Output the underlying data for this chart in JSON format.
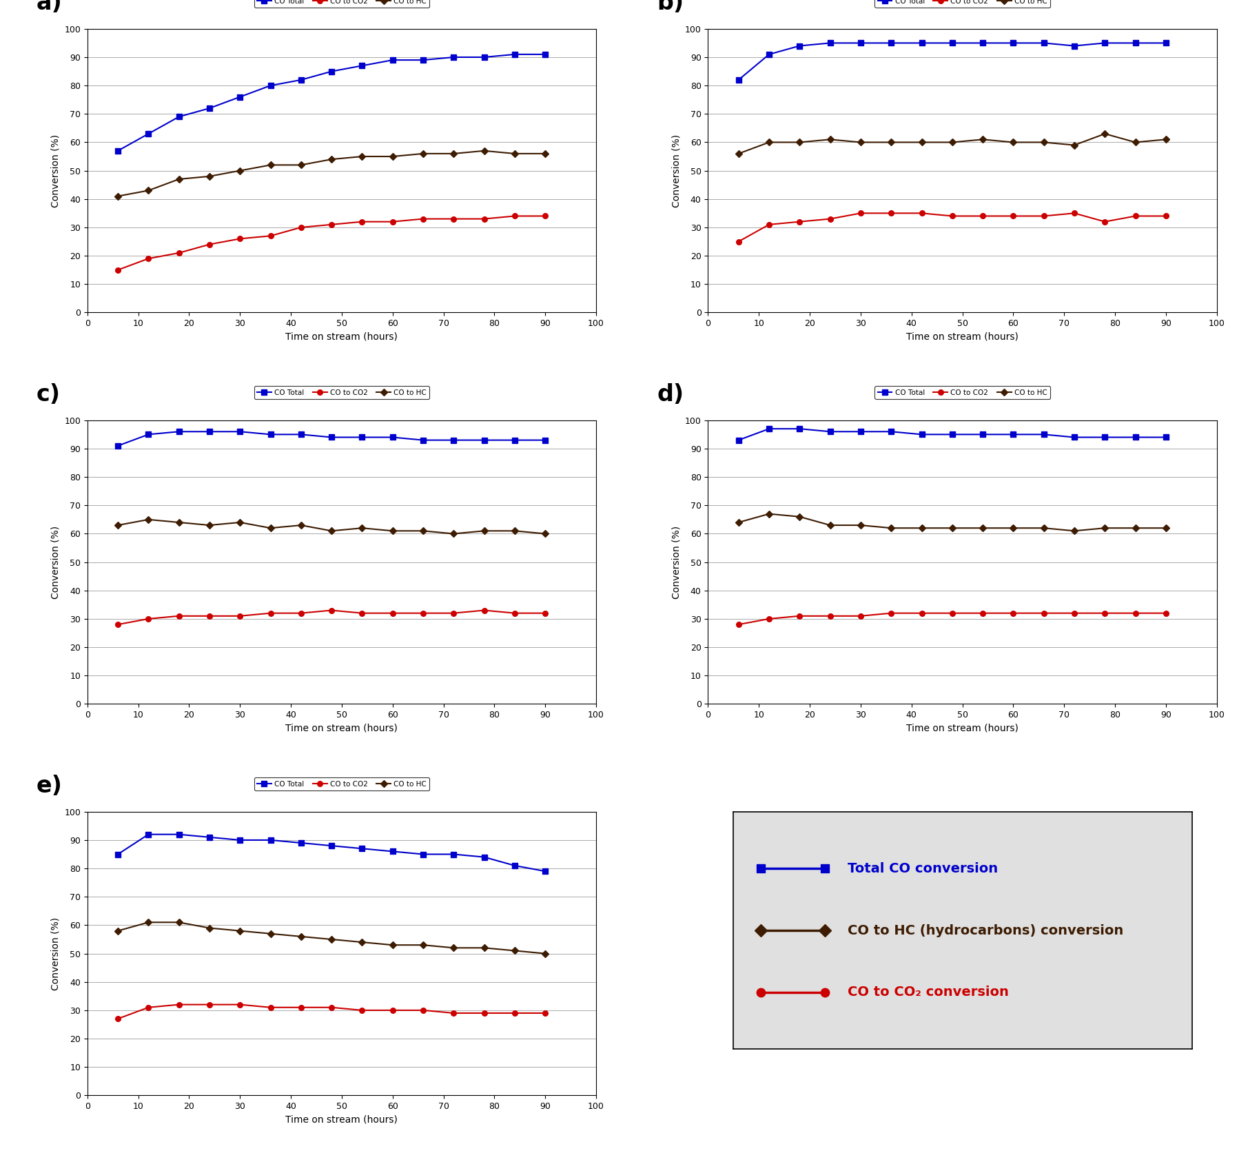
{
  "panels": {
    "a": {
      "co_total": {
        "x": [
          6,
          12,
          18,
          24,
          30,
          36,
          42,
          48,
          54,
          60,
          66,
          72,
          78,
          84,
          90
        ],
        "y": [
          57,
          63,
          69,
          72,
          76,
          80,
          82,
          85,
          87,
          89,
          89,
          90,
          90,
          91,
          91
        ]
      },
      "co_to_co2": {
        "x": [
          6,
          12,
          18,
          24,
          30,
          36,
          42,
          48,
          54,
          60,
          66,
          72,
          78,
          84,
          90
        ],
        "y": [
          15,
          19,
          21,
          24,
          26,
          27,
          30,
          31,
          32,
          32,
          33,
          33,
          33,
          34,
          34
        ]
      },
      "co_to_hc": {
        "x": [
          6,
          12,
          18,
          24,
          30,
          36,
          42,
          48,
          54,
          60,
          66,
          72,
          78,
          84,
          90
        ],
        "y": [
          41,
          43,
          47,
          48,
          50,
          52,
          52,
          54,
          55,
          55,
          56,
          56,
          57,
          56,
          56
        ]
      }
    },
    "b": {
      "co_total": {
        "x": [
          6,
          12,
          18,
          24,
          30,
          36,
          42,
          48,
          54,
          60,
          66,
          72,
          78,
          84,
          90
        ],
        "y": [
          82,
          91,
          94,
          95,
          95,
          95,
          95,
          95,
          95,
          95,
          95,
          94,
          95,
          95,
          95
        ]
      },
      "co_to_co2": {
        "x": [
          6,
          12,
          18,
          24,
          30,
          36,
          42,
          48,
          54,
          60,
          66,
          72,
          78,
          84,
          90
        ],
        "y": [
          25,
          31,
          32,
          33,
          35,
          35,
          35,
          34,
          34,
          34,
          34,
          35,
          32,
          34,
          34
        ]
      },
      "co_to_hc": {
        "x": [
          6,
          12,
          18,
          24,
          30,
          36,
          42,
          48,
          54,
          60,
          66,
          72,
          78,
          84,
          90
        ],
        "y": [
          56,
          60,
          60,
          61,
          60,
          60,
          60,
          60,
          61,
          60,
          60,
          59,
          63,
          60,
          61
        ]
      }
    },
    "c": {
      "co_total": {
        "x": [
          6,
          12,
          18,
          24,
          30,
          36,
          42,
          48,
          54,
          60,
          66,
          72,
          78,
          84,
          90
        ],
        "y": [
          91,
          95,
          96,
          96,
          96,
          95,
          95,
          94,
          94,
          94,
          93,
          93,
          93,
          93,
          93
        ]
      },
      "co_to_co2": {
        "x": [
          6,
          12,
          18,
          24,
          30,
          36,
          42,
          48,
          54,
          60,
          66,
          72,
          78,
          84,
          90
        ],
        "y": [
          28,
          30,
          31,
          31,
          31,
          32,
          32,
          33,
          32,
          32,
          32,
          32,
          33,
          32,
          32
        ]
      },
      "co_to_hc": {
        "x": [
          6,
          12,
          18,
          24,
          30,
          36,
          42,
          48,
          54,
          60,
          66,
          72,
          78,
          84,
          90
        ],
        "y": [
          63,
          65,
          64,
          63,
          64,
          62,
          63,
          61,
          62,
          61,
          61,
          60,
          61,
          61,
          60
        ]
      }
    },
    "d": {
      "co_total": {
        "x": [
          6,
          12,
          18,
          24,
          30,
          36,
          42,
          48,
          54,
          60,
          66,
          72,
          78,
          84,
          90
        ],
        "y": [
          93,
          97,
          97,
          96,
          96,
          96,
          95,
          95,
          95,
          95,
          95,
          94,
          94,
          94,
          94
        ]
      },
      "co_to_co2": {
        "x": [
          6,
          12,
          18,
          24,
          30,
          36,
          42,
          48,
          54,
          60,
          66,
          72,
          78,
          84,
          90
        ],
        "y": [
          28,
          30,
          31,
          31,
          31,
          32,
          32,
          32,
          32,
          32,
          32,
          32,
          32,
          32,
          32
        ]
      },
      "co_to_hc": {
        "x": [
          6,
          12,
          18,
          24,
          30,
          36,
          42,
          48,
          54,
          60,
          66,
          72,
          78,
          84,
          90
        ],
        "y": [
          64,
          67,
          66,
          63,
          63,
          62,
          62,
          62,
          62,
          62,
          62,
          61,
          62,
          62,
          62
        ]
      }
    },
    "e": {
      "co_total": {
        "x": [
          6,
          12,
          18,
          24,
          30,
          36,
          42,
          48,
          54,
          60,
          66,
          72,
          78,
          84,
          90
        ],
        "y": [
          85,
          92,
          92,
          91,
          90,
          90,
          89,
          88,
          87,
          86,
          85,
          85,
          84,
          81,
          79
        ]
      },
      "co_to_co2": {
        "x": [
          6,
          12,
          18,
          24,
          30,
          36,
          42,
          48,
          54,
          60,
          66,
          72,
          78,
          84,
          90
        ],
        "y": [
          27,
          31,
          32,
          32,
          32,
          31,
          31,
          31,
          30,
          30,
          30,
          29,
          29,
          29,
          29
        ]
      },
      "co_to_hc": {
        "x": [
          6,
          12,
          18,
          24,
          30,
          36,
          42,
          48,
          54,
          60,
          66,
          72,
          78,
          84,
          90
        ],
        "y": [
          58,
          61,
          61,
          59,
          58,
          57,
          56,
          55,
          54,
          53,
          53,
          52,
          52,
          51,
          50
        ]
      }
    }
  },
  "co_total_color": "#0000cc",
  "co_to_co2_color": "#cc0000",
  "co_to_hc_color": "#3d1c02",
  "xlabel": "Time on stream (hours)",
  "ylabel": "Conversion (%)",
  "xlim": [
    0,
    100
  ],
  "ylim": [
    0,
    100
  ],
  "xticks": [
    0,
    10,
    20,
    30,
    40,
    50,
    60,
    70,
    80,
    90,
    100
  ],
  "yticks": [
    0,
    10,
    20,
    30,
    40,
    50,
    60,
    70,
    80,
    90,
    100
  ],
  "panel_labels": [
    "a)",
    "b)",
    "c)",
    "d)",
    "e)"
  ],
  "legend_title_total": "Total CO conversion",
  "legend_title_co2": "CO to CO₂ conversion",
  "legend_title_hc": "CO to HC (hydrocarbons) conversion",
  "legend_bg_color": "#e0e0e0",
  "plot_bg_color": "#ffffff",
  "grid_color": "#aaaaaa"
}
